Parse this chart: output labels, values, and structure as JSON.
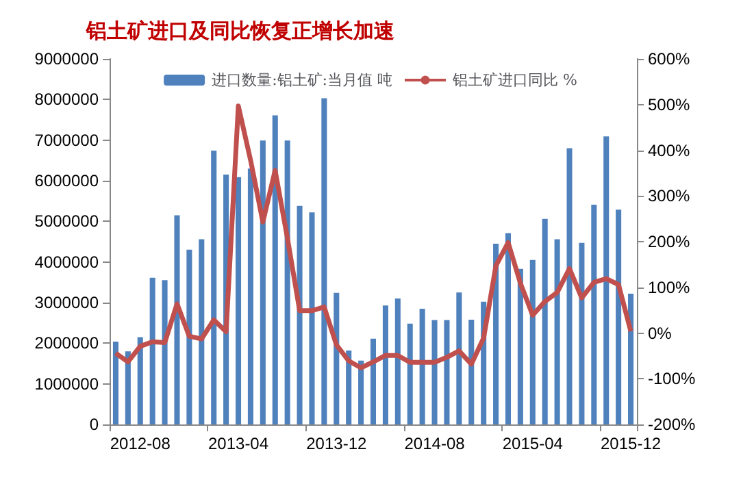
{
  "chart_data": {
    "type": "bar",
    "title": "铝土矿进口及同比恢复正增长加速",
    "categories": [
      null,
      null,
      "2012-08",
      null,
      null,
      null,
      null,
      null,
      null,
      null,
      "2013-04",
      null,
      null,
      null,
      null,
      null,
      null,
      null,
      "2013-12",
      null,
      null,
      null,
      null,
      null,
      null,
      null,
      "2014-08",
      null,
      null,
      null,
      null,
      null,
      null,
      null,
      "2015-04",
      null,
      null,
      null,
      null,
      null,
      null,
      null,
      "2015-12"
    ],
    "series": [
      {
        "name": "进口数量:铝土矿:当月值 吨",
        "color": "#4f81bd",
        "values": [
          2040000,
          1800000,
          2150000,
          3610000,
          3550000,
          5150000,
          4300000,
          4560000,
          6740000,
          6150000,
          6090000,
          6300000,
          6990000,
          7610000,
          6990000,
          5380000,
          5220000,
          8030000,
          3240000,
          1820000,
          1570000,
          2110000,
          2930000,
          3100000,
          2480000,
          2850000,
          2570000,
          2570000,
          3250000,
          2580000,
          3020000,
          4450000,
          4710000,
          3830000,
          4050000,
          5060000,
          4560000,
          6800000,
          4470000,
          5410000,
          7090000,
          5290000,
          3220000
        ]
      },
      {
        "name": "铝土矿进口同比 %",
        "type": "line",
        "axis": "y2",
        "color": "#c0504d",
        "values": [
          -44,
          -63,
          -29,
          -19,
          -21,
          64,
          -7,
          -13,
          29,
          3,
          497,
          378,
          243,
          356,
          208,
          49,
          49,
          57,
          -26,
          -61,
          -76,
          -63,
          -49,
          -49,
          -64,
          -64,
          -64,
          -53,
          -39,
          -68,
          -11,
          147,
          198,
          109,
          39,
          69,
          89,
          141,
          77,
          111,
          119,
          106,
          4
        ]
      }
    ],
    "ylim": [
      0,
      9000000
    ],
    "yticks": [
      0,
      1000000,
      2000000,
      3000000,
      4000000,
      5000000,
      6000000,
      7000000,
      8000000,
      9000000
    ],
    "y2lim": [
      -200,
      600
    ],
    "y2ticks": [
      {
        "value": -200,
        "label": "-200%"
      },
      {
        "value": -100,
        "label": "-100%"
      },
      {
        "value": 0,
        "label": "0%"
      },
      {
        "value": 100,
        "label": "100%"
      },
      {
        "value": 200,
        "label": "200%"
      },
      {
        "value": 300,
        "label": "300%"
      },
      {
        "value": 400,
        "label": "400%"
      },
      {
        "value": 500,
        "label": "500%"
      },
      {
        "value": 600,
        "label": "600%"
      }
    ],
    "legend": "top",
    "grid": false,
    "marker": "none",
    "line_style": "solid"
  }
}
